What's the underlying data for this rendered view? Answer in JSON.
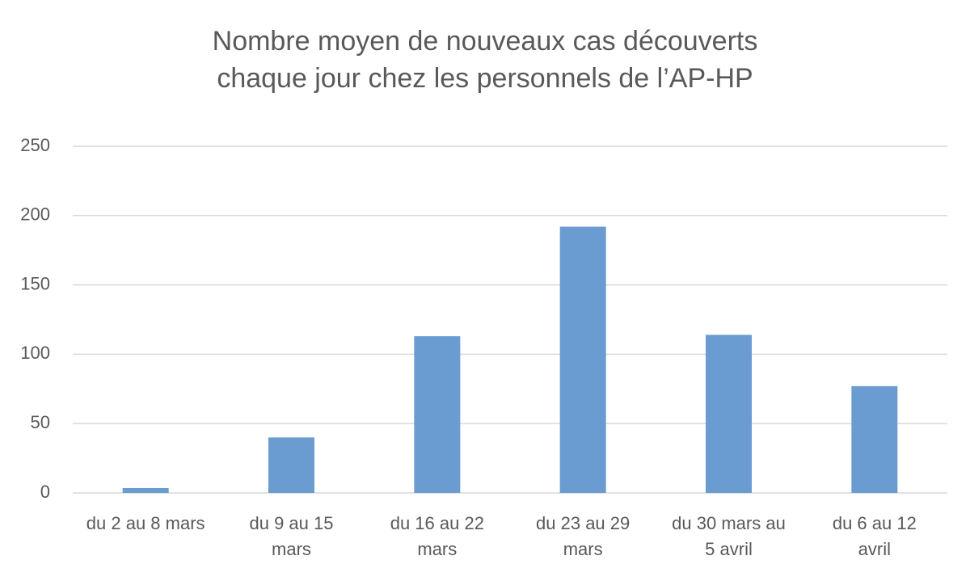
{
  "chart_data": {
    "type": "bar",
    "title": "Nombre moyen de nouveaux cas découverts chaque jour chez les personnels de l’AP-HP",
    "categories": [
      "du 2 au 8 mars",
      "du 9 au 15 mars",
      "du 16 au 22 mars",
      "du 23 au 29 mars",
      "du 30 mars au 5 avril",
      "du 6 au 12 avril"
    ],
    "values": [
      3.5,
      40,
      113,
      192,
      114,
      77
    ],
    "color": "#6a9bd1",
    "ylim": [
      0,
      250
    ],
    "yticks": [
      0,
      50,
      100,
      150,
      200,
      250
    ],
    "grid": true
  }
}
